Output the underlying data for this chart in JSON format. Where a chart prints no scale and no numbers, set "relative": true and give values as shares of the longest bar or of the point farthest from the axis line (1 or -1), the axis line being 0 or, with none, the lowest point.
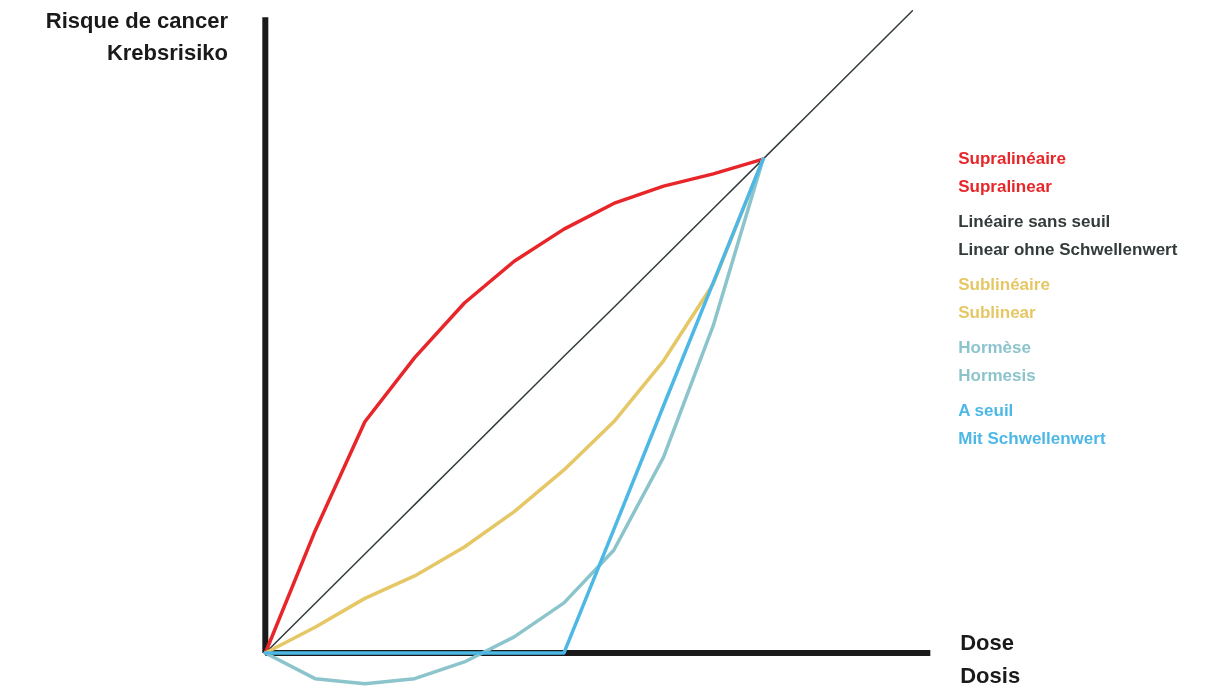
{
  "chart_data": {
    "type": "line",
    "relative": true,
    "xlabel": "Dose\nDosis",
    "ylabel": "Risque de cancer\nKrebsrisiko",
    "categories": [
      null,
      null,
      null,
      null,
      null,
      null,
      null,
      null,
      null,
      null,
      null,
      null,
      null,
      null
    ],
    "series": [
      {
        "name": "Supralinéaire\nSupralinear",
        "color": "#e8262a",
        "values": [
          0,
          0.19,
          0.36,
          0.46,
          0.545,
          0.61,
          0.66,
          0.7,
          0.727,
          0.746,
          0.769,
          null,
          null,
          null
        ]
      },
      {
        "name": "Linéaire sans seuil\nLinear ohne Schwellenwert",
        "color": "#333b3b",
        "values": [
          0,
          0.077,
          0.154,
          0.231,
          0.308,
          0.385,
          0.462,
          0.538,
          0.615,
          0.692,
          0.769,
          0.846,
          0.923,
          1
        ]
      },
      {
        "name": "Sublinéaire\nSublinear",
        "color": "#e6c765",
        "values": [
          0,
          0.04,
          0.085,
          0.12,
          0.165,
          0.22,
          0.285,
          0.36,
          0.455,
          0.575,
          0.769,
          null,
          null,
          null
        ]
      },
      {
        "name": "Hormèse\nHormesis",
        "color": "#8cc4cc",
        "values": [
          0,
          -0.04,
          -0.048,
          -0.04,
          -0.014,
          0.025,
          0.078,
          0.16,
          0.305,
          0.51,
          0.769,
          null,
          null,
          null
        ]
      },
      {
        "name": "A seuil\nMit Schwellenwert",
        "color": "#4db8e6",
        "values": [
          0,
          0,
          0,
          0,
          0,
          0,
          0,
          0.192,
          0.385,
          0.577,
          0.769,
          null,
          null,
          null
        ]
      }
    ]
  }
}
